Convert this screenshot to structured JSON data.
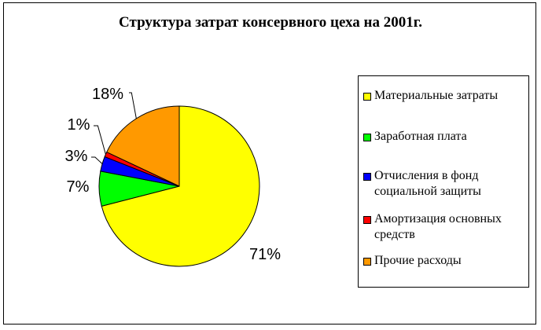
{
  "chart_data": {
    "type": "pie",
    "title": "Структура затрат консервного цеха на 2001г.",
    "categories": [
      "Материальные затраты",
      "Заработная плата",
      "Отчисления в фонд социальной защиты",
      "Амортизация основных средств",
      "Прочие расходы"
    ],
    "values": [
      71,
      7,
      3,
      1,
      18
    ],
    "labels": [
      "71%",
      "7%",
      "3%",
      "1%",
      "18%"
    ],
    "colors": [
      "#FFFF00",
      "#00FF00",
      "#0000FF",
      "#FF0000",
      "#FF9900"
    ],
    "legend": "right"
  }
}
